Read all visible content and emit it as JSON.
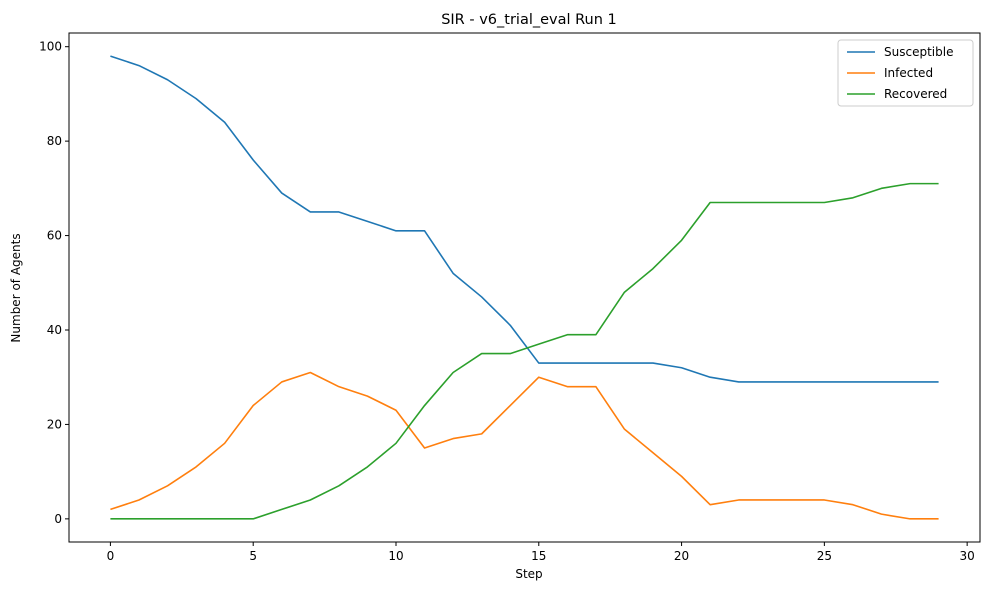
{
  "chart_data": {
    "type": "line",
    "title": "SIR - v6_trial_eval Run 1",
    "xlabel": "Step",
    "ylabel": "Number of Agents",
    "xlim": [
      -1.45,
      30.45
    ],
    "ylim": [
      -4.9,
      102.9
    ],
    "xticks": [
      0,
      5,
      10,
      15,
      20,
      25,
      30
    ],
    "yticks": [
      0,
      20,
      40,
      60,
      80,
      100
    ],
    "grid": false,
    "legend_position": "top-right",
    "x": [
      0,
      1,
      2,
      3,
      4,
      5,
      6,
      7,
      8,
      9,
      10,
      11,
      12,
      13,
      14,
      15,
      16,
      17,
      18,
      19,
      20,
      21,
      22,
      23,
      24,
      25,
      26,
      27,
      28,
      29
    ],
    "series": [
      {
        "name": "Susceptible",
        "color": "#1f77b4",
        "values": [
          98,
          96,
          93,
          89,
          84,
          76,
          69,
          65,
          65,
          63,
          61,
          61,
          52,
          47,
          41,
          33,
          33,
          33,
          33,
          33,
          32,
          30,
          29,
          29,
          29,
          29,
          29,
          29,
          29,
          29
        ]
      },
      {
        "name": "Infected",
        "color": "#ff7f0e",
        "values": [
          2,
          4,
          7,
          11,
          16,
          24,
          29,
          31,
          28,
          26,
          23,
          15,
          17,
          18,
          24,
          30,
          28,
          28,
          19,
          14,
          9,
          3,
          4,
          4,
          4,
          4,
          3,
          1,
          0,
          0
        ]
      },
      {
        "name": "Recovered",
        "color": "#2ca02c",
        "values": [
          0,
          0,
          0,
          0,
          0,
          0,
          2,
          4,
          7,
          11,
          16,
          24,
          31,
          35,
          35,
          37,
          39,
          39,
          48,
          53,
          59,
          67,
          67,
          67,
          67,
          67,
          68,
          70,
          71,
          71
        ]
      }
    ]
  }
}
